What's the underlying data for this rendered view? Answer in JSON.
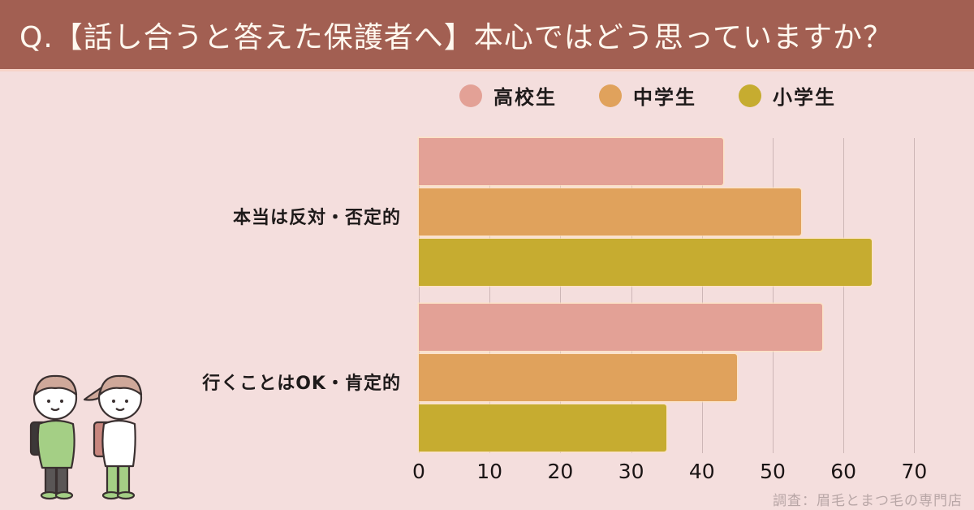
{
  "header": {
    "title": "Q.【話し合うと答えた保護者へ】本心ではどう思っていますか？",
    "background_color": "#a25f52"
  },
  "legend": [
    {
      "label": "高校生",
      "color": "#e3a196"
    },
    {
      "label": "中学生",
      "color": "#e0a25c"
    },
    {
      "label": "小学生",
      "color": "#c6ac30"
    }
  ],
  "categories": [
    {
      "label": "本当は反対・否定的"
    },
    {
      "label": "行くことはOK・肯定的"
    }
  ],
  "axis": {
    "ticks": [
      "0",
      "10",
      "20",
      "30",
      "40",
      "50",
      "60",
      "70"
    ]
  },
  "source": "調査：眉毛とまつ毛の専門店",
  "illustration": "two-schoolchildren-with-randoseru",
  "chart_data": {
    "type": "bar",
    "orientation": "horizontal",
    "title": "Q.【話し合うと答えた保護者へ】本心ではどう思っていますか？",
    "categories": [
      "本当は反対・否定的",
      "行くことはOK・肯定的"
    ],
    "series": [
      {
        "name": "高校生",
        "color": "#e3a196",
        "values": [
          43,
          57
        ]
      },
      {
        "name": "中学生",
        "color": "#e0a25c",
        "values": [
          54,
          45
        ]
      },
      {
        "name": "小学生",
        "color": "#c6ac30",
        "values": [
          64,
          35
        ]
      }
    ],
    "xlabel": "",
    "ylabel": "",
    "xlim": [
      0,
      70
    ],
    "xticks": [
      0,
      10,
      20,
      30,
      40,
      50,
      60,
      70
    ],
    "grid": true,
    "legend_position": "top-right",
    "annotations": [
      "調査：眉毛とまつ毛の専門店"
    ]
  }
}
